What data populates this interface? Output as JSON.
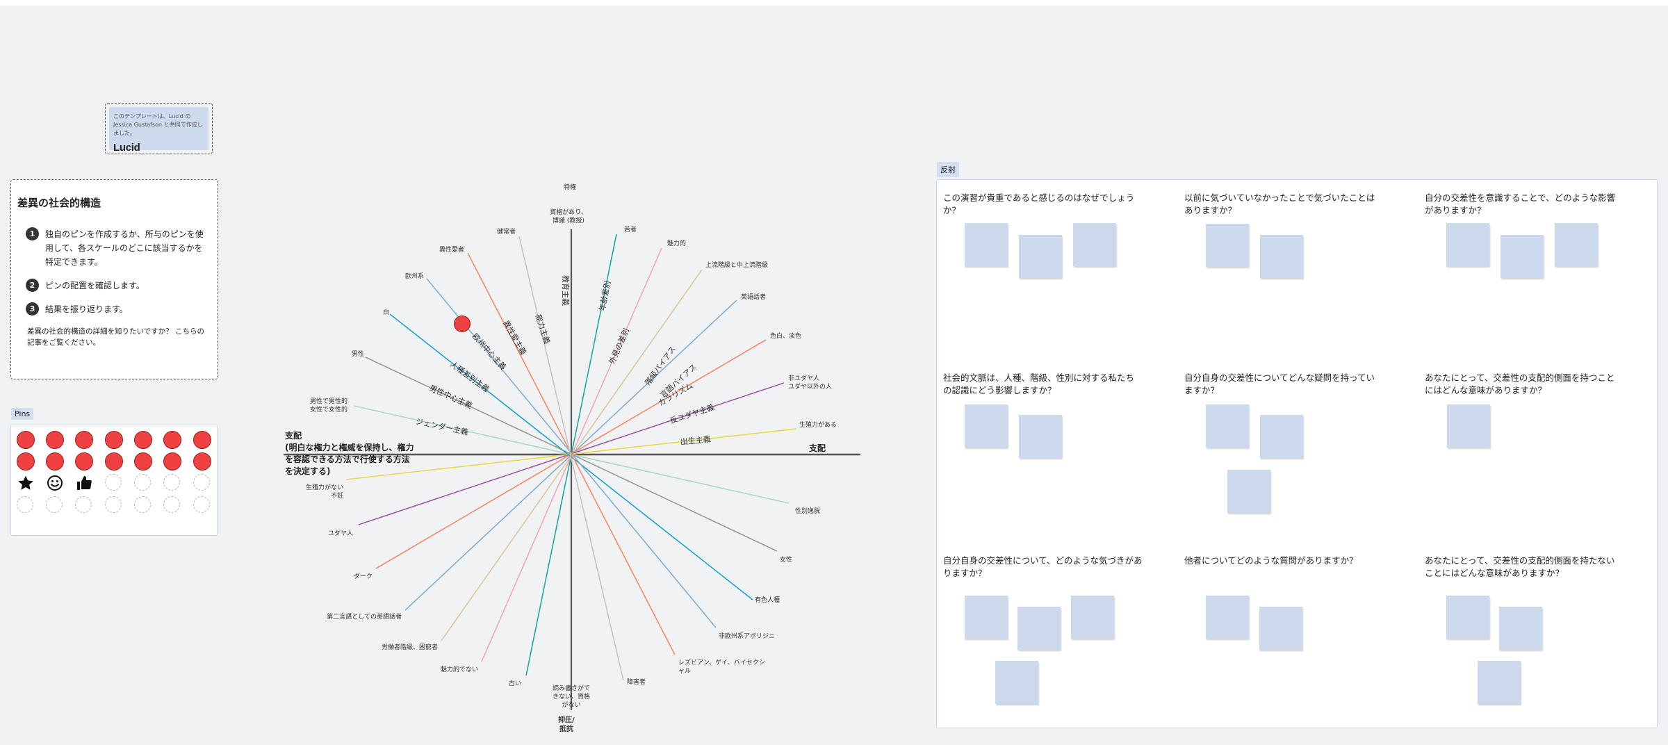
{
  "credit": {
    "text": "このテンプレートは、Lucid の Jessica Gustafson と共同で作成しました。",
    "logo": "Lucid"
  },
  "info": {
    "title": "差異の社会的構造",
    "steps": [
      {
        "num": "1",
        "text": "独自のピンを作成するか、所与のピンを使用して、各スケールのどこに該当するかを特定できます。"
      },
      {
        "num": "2",
        "text": "ピンの配置を確認します。"
      },
      {
        "num": "3",
        "text": "結果を振り返ります。"
      }
    ],
    "footer": "差異の社会的構造の詳細を知りたいですか？ こちらの記事をご覧ください。"
  },
  "pins": {
    "label": "Pins",
    "icons": [
      "star-icon",
      "smiley-icon",
      "thumbs-up-icon"
    ]
  },
  "wheel": {
    "top_label": "特権",
    "bottom_label": "抑圧/抵抗",
    "right_label": "支配",
    "left_label": "支配\n(明白な権力と権威を保持し、権力を容認できる方法で行使する方法を決定する)",
    "spokes": [
      {
        "pos": "資格があり、博識 (教授)",
        "neg": "読み書きができない、資格がない",
        "name": "教育主義",
        "color": "#555555"
      },
      {
        "pos": "若者",
        "neg": "古い",
        "name": "年齢差別",
        "color": "#20a89a"
      },
      {
        "pos": "魅力的",
        "neg": "魅力的でない",
        "name": "外見の差別",
        "color": "#f2a7b8"
      },
      {
        "pos": "上流階級と中上流階級",
        "neg": "労働者階級、困窮者",
        "name": "階級バイアス",
        "color": "#d9c99a"
      },
      {
        "pos": "英語話者",
        "neg": "第二言語としての英語話者",
        "name": "言語バイアス",
        "color": "#7fb0d6"
      },
      {
        "pos": "色白、淡色",
        "neg": "ダーク",
        "name": "カラリズム",
        "color": "#f58a66"
      },
      {
        "pos": "非ユダヤ人\nユダヤ以外の人",
        "neg": "ユダヤ人",
        "name": "反ユダヤ主義",
        "color": "#9b5aa3"
      },
      {
        "pos": "生殖力がある",
        "neg": "生殖力がない\n不妊",
        "name": "出生主義",
        "color": "#e8d94a"
      },
      {
        "pos": "男性で男性的\n女性で女性的",
        "neg": "性別逸脱",
        "name": "ジェンダー主義",
        "color": "#a9d8c4"
      },
      {
        "pos": "男性",
        "neg": "女性",
        "name": "男性中心主義",
        "color": "#999999"
      },
      {
        "pos": "白",
        "neg": "有色人種",
        "name": "人種差別主義",
        "color": "#1aa3d4"
      },
      {
        "pos": "欧州系",
        "neg": "非欧州系アボリジニ",
        "name": "欧州中心主義",
        "color": "#7fb0d6"
      },
      {
        "pos": "異性愛者",
        "neg": "レズビアン、ゲイ、バイセクシャル",
        "name": "異性愛主義",
        "color": "#f58a66"
      },
      {
        "pos": "健常者",
        "neg": "障害者",
        "name": "能力主義",
        "color": "#c4c4c4"
      }
    ]
  },
  "reflection": {
    "label": "反射",
    "questions": [
      "この演習が貴重であると感じるのはなぜでしょうか？",
      "以前に気づいていなかったことで気づいたことはありますか？",
      "自分の交差性を意識することで、どのような影響がありますか？",
      "社会的文脈は、人種、階級、性別に対する私たちの認識にどう影響しますか？",
      "自分自身の交差性についてどんな疑問を持っていますか？",
      "あなたにとって、交差性の支配的側面を持つことにはどんな意味がありますか？",
      "自分自身の交差性について、どのような気づきがありますか？",
      "他者についてどのような質問がありますか？",
      "あなたにとって、交差性の支配的側面を持たないことにはどんな意味がありますか？"
    ]
  }
}
